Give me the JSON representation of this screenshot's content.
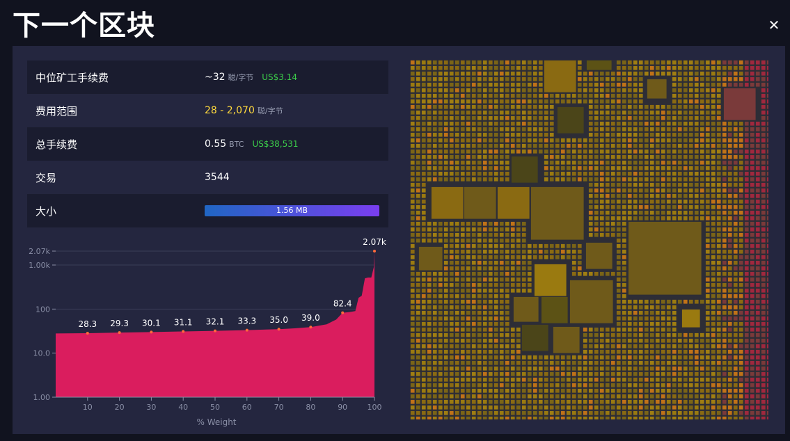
{
  "title": "下一个区块",
  "stats": {
    "median_fee": {
      "label": "中位矿工手续费",
      "value": "~32",
      "unit": "聪/字节",
      "usd": "US$3.14"
    },
    "fee_range": {
      "label": "费用范围",
      "value": "28 - 2,070",
      "unit": "聪/字节"
    },
    "total_fees": {
      "label": "总手续费",
      "value": "0.55",
      "unit": "BTC",
      "usd": "US$38,531"
    },
    "tx_count": {
      "label": "交易",
      "value": "3544"
    },
    "size": {
      "label": "大小",
      "value": "1.56 MB",
      "fill_fraction": 1.0
    }
  },
  "chart_data": {
    "type": "area",
    "xlabel": "% Weight",
    "ylabel": "",
    "yscale": "log",
    "ylim": [
      1,
      2070
    ],
    "xlim": [
      0,
      100
    ],
    "x_ticks": [
      "10",
      "20",
      "30",
      "40",
      "50",
      "60",
      "70",
      "80",
      "90",
      "100"
    ],
    "y_ticks": [
      "1.00",
      "10.0",
      "100",
      "1.00k",
      "2.07k"
    ],
    "labeled_points": [
      {
        "x": 10,
        "y": 28.3,
        "label": "28.3"
      },
      {
        "x": 20,
        "y": 29.3,
        "label": "29.3"
      },
      {
        "x": 30,
        "y": 30.1,
        "label": "30.1"
      },
      {
        "x": 40,
        "y": 31.1,
        "label": "31.1"
      },
      {
        "x": 50,
        "y": 32.1,
        "label": "32.1"
      },
      {
        "x": 60,
        "y": 33.3,
        "label": "33.3"
      },
      {
        "x": 70,
        "y": 35.0,
        "label": "35.0"
      },
      {
        "x": 80,
        "y": 39.0,
        "label": "39.0"
      },
      {
        "x": 90,
        "y": 82.4,
        "label": "82.4"
      },
      {
        "x": 100,
        "y": 2070,
        "label": "2.07k"
      }
    ],
    "series": [
      {
        "x": [
          0,
          10,
          20,
          30,
          40,
          50,
          60,
          70,
          75,
          80,
          85,
          88,
          90,
          92,
          94,
          95,
          96,
          97,
          98,
          99,
          99.8,
          100
        ],
        "y": [
          28,
          28.3,
          29.3,
          30.1,
          31.1,
          32.1,
          33.3,
          35.0,
          36.5,
          39.0,
          45,
          58,
          82.4,
          85,
          90,
          180,
          200,
          500,
          520,
          520,
          900,
          2070
        ]
      }
    ],
    "fill_color": "#da1d5e"
  },
  "treemap": {
    "colors": [
      "#8a6a12",
      "#6f5a1a",
      "#5c5215",
      "#9a7a10",
      "#7a6417",
      "#4b4519",
      "#a07e12",
      "#c07218",
      "#a0283e",
      "#7a3a3a"
    ]
  }
}
